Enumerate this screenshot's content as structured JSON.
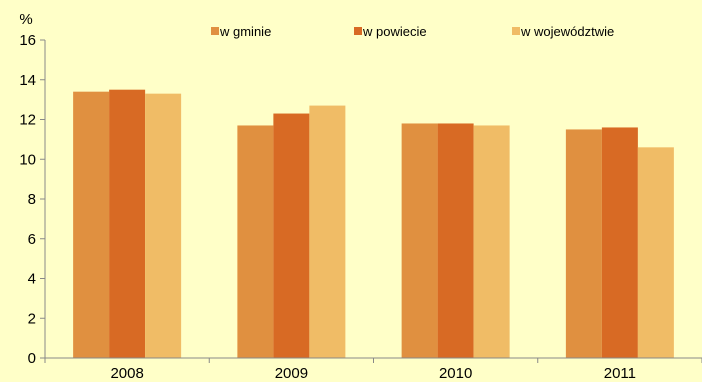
{
  "chart_data": {
    "type": "bar",
    "unit_label": "%",
    "categories": [
      "2008",
      "2009",
      "2010",
      "2011"
    ],
    "series": [
      {
        "name": "w gminie",
        "values": [
          13.4,
          11.7,
          11.8,
          11.5
        ],
        "color": "#e09040"
      },
      {
        "name": "w powiecie",
        "values": [
          13.5,
          12.3,
          11.8,
          11.6
        ],
        "color": "#d86a24"
      },
      {
        "name": "w województwie",
        "values": [
          13.3,
          12.7,
          11.7,
          10.6
        ],
        "color": "#f0bc66"
      }
    ],
    "ylim": [
      0,
      16
    ],
    "yticks": [
      "0",
      "2",
      "4",
      "6",
      "8",
      "10",
      "12",
      "14",
      "16"
    ],
    "grid": false,
    "legend_position": "top",
    "background_color": "#ffffc8",
    "axis_color": "#888888"
  }
}
